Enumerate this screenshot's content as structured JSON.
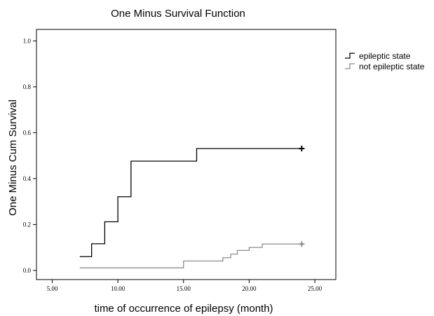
{
  "chart_data": {
    "type": "line",
    "title": "One Minus Survival Function",
    "xlabel": "time of occurrence of epilepsy (month)",
    "ylabel": "One Minus Cum Survival",
    "xlim": [
      3.8,
      26.6
    ],
    "ylim": [
      -0.04,
      1.05
    ],
    "x_ticks": [
      {
        "value": 5,
        "label": "5.00"
      },
      {
        "value": 10,
        "label": "10.00"
      },
      {
        "value": 15,
        "label": "15.00"
      },
      {
        "value": 20,
        "label": "20.00"
      },
      {
        "value": 25,
        "label": "25.00"
      }
    ],
    "y_ticks": [
      {
        "value": 0.0,
        "label": "0.0"
      },
      {
        "value": 0.2,
        "label": "0.2"
      },
      {
        "value": 0.4,
        "label": "0.4"
      },
      {
        "value": 0.6,
        "label": "0.6"
      },
      {
        "value": 0.8,
        "label": "0.8"
      },
      {
        "value": 1.0,
        "label": "1.0"
      }
    ],
    "grid": false,
    "legend_position": "outside-right-top",
    "series": [
      {
        "name": "epileptic state",
        "color": "#000000",
        "step": true,
        "x": [
          7.1,
          8.0,
          9.0,
          10.0,
          11.0,
          16.0,
          24.0
        ],
        "y": [
          0.06,
          0.116,
          0.212,
          0.321,
          0.476,
          0.531,
          0.531
        ],
        "censored": [
          {
            "x": 24.0,
            "y": 0.531
          }
        ]
      },
      {
        "name": "not epileptic state",
        "color": "#8c8c8c",
        "step": true,
        "x": [
          7.1,
          15.0,
          18.0,
          18.6,
          19.1,
          20.0,
          21.0,
          24.0
        ],
        "y": [
          0.011,
          0.041,
          0.055,
          0.071,
          0.087,
          0.1,
          0.115,
          0.115
        ],
        "censored": [
          {
            "x": 24.0,
            "y": 0.115
          }
        ]
      }
    ]
  }
}
